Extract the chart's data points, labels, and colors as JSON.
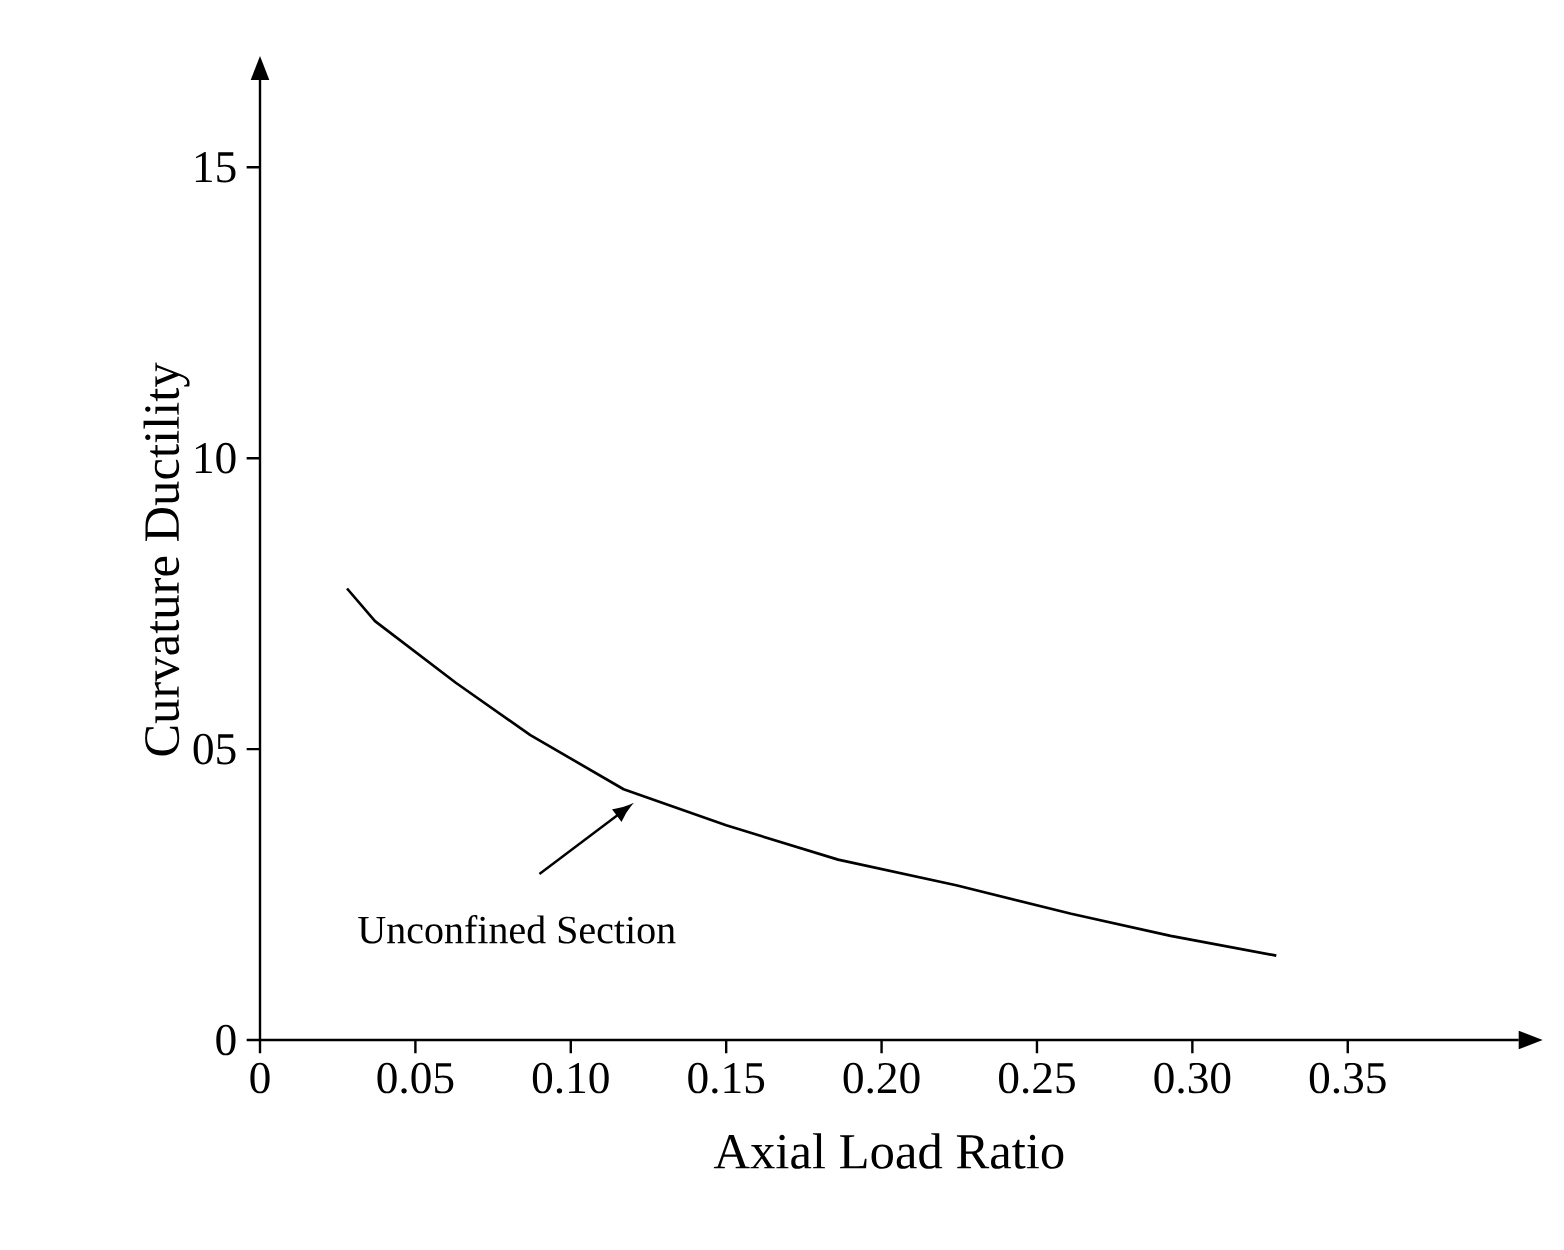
{
  "chart_data": {
    "type": "line",
    "xlabel": "Axial Load Ratio",
    "ylabel": "Curvature Ductility",
    "x": [
      0.028,
      0.037,
      0.063,
      0.087,
      0.117,
      0.15,
      0.186,
      0.224,
      0.261,
      0.293,
      0.327
    ],
    "series": [
      {
        "color": "#000000",
        "values": [
          7.76,
          7.2,
          6.14,
          5.24,
          4.31,
          3.69,
          3.1,
          2.66,
          2.17,
          1.79,
          1.45
        ]
      }
    ],
    "xlim": [
      0,
      0.405
    ],
    "ylim": [
      0,
      16.5
    ],
    "xticks": [
      0,
      0.05,
      {
        "value": 0.1,
        "label": "0.10"
      },
      0.15,
      {
        "value": 0.2,
        "label": "0.20"
      },
      0.25,
      {
        "value": 0.3,
        "label": "0.30"
      },
      0.35
    ],
    "yticks": [
      0,
      {
        "value": 5,
        "label": "05"
      },
      10,
      15
    ],
    "annotations": [
      "Unconfined Section"
    ]
  }
}
